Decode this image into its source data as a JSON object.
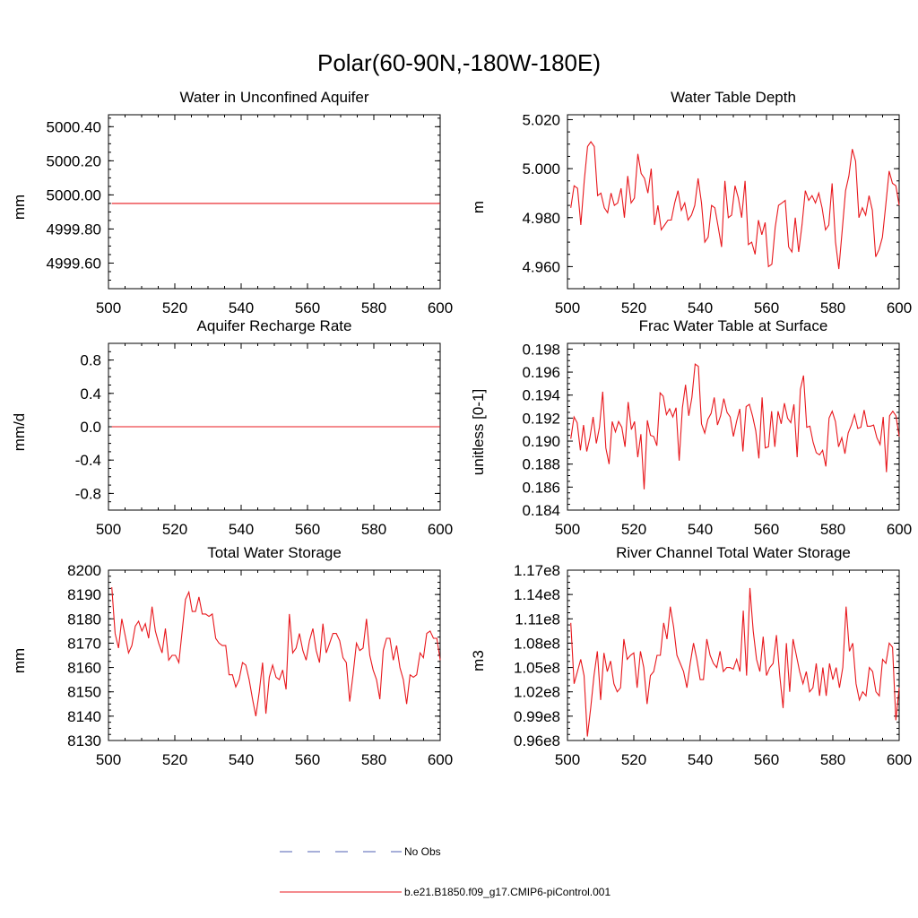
{
  "title": "Polar(60-90N,-180W-180E)",
  "legend": {
    "entries": [
      {
        "label": "No Obs",
        "color": "#4f5fb3",
        "dash": true
      },
      {
        "label": "b.e21.B1850.f09_g17.CMIP6-piControl.001",
        "color": "#e8171c",
        "dash": false
      }
    ]
  },
  "chart_data": [
    {
      "type": "line",
      "title": "Water in Unconfined Aquifer",
      "ylabel": "mm",
      "xlabel": "",
      "xlim": [
        500,
        600
      ],
      "ylim": [
        4999.45,
        5000.47
      ],
      "xticks": [
        500,
        520,
        540,
        560,
        580,
        600
      ],
      "yticks": [
        4999.6,
        4999.8,
        5000.0,
        5000.2,
        5000.4
      ],
      "ytick_labels": [
        "4999.60",
        "4999.80",
        "5000.00",
        "5000.20",
        "5000.40"
      ],
      "x_start": 501,
      "series": [
        {
          "name": "b.e21.B1850.f09_g17.CMIP6-piControl.001",
          "values": [
            4999.95,
            4999.95
          ]
        }
      ],
      "x": [
        501,
        600
      ]
    },
    {
      "type": "line",
      "title": "Water Table Depth",
      "ylabel": "m",
      "xlabel": "",
      "xlim": [
        500,
        600
      ],
      "ylim": [
        4.951,
        5.022
      ],
      "xticks": [
        500,
        520,
        540,
        560,
        580,
        600
      ],
      "yticks": [
        4.96,
        4.98,
        5.0,
        5.02
      ],
      "ytick_labels": [
        "4.960",
        "4.980",
        "5.000",
        "5.020"
      ],
      "x_start": 501,
      "series": [
        {
          "name": "b.e21.B1850.f09_g17.CMIP6-piControl.001",
          "values": [
            4.984,
            4.993,
            4.992,
            4.977,
            4.995,
            5.009,
            5.011,
            5.009,
            4.989,
            4.99,
            4.984,
            4.982,
            4.99,
            4.985,
            4.986,
            4.992,
            4.98,
            4.997,
            4.986,
            4.988,
            5.006,
            4.998,
            4.996,
            4.99,
            5.0,
            4.977,
            4.985,
            4.975,
            4.977,
            4.979,
            4.979,
            4.986,
            4.991,
            4.983,
            4.986,
            4.979,
            4.981,
            4.985,
            4.996,
            4.986,
            4.97,
            4.972,
            4.985,
            4.984,
            4.976,
            4.968,
            4.995,
            4.98,
            4.981,
            4.993,
            4.988,
            4.98,
            4.995,
            4.969,
            4.97,
            4.965,
            4.979,
            4.973,
            4.978,
            4.96,
            4.961,
            4.976,
            4.985,
            4.986,
            4.987,
            4.968,
            4.966,
            4.98,
            4.966,
            4.977,
            4.991,
            4.987,
            4.989,
            4.986,
            4.99,
            4.984,
            4.975,
            4.977,
            4.994,
            4.97,
            4.959,
            4.975,
            4.991,
            4.997,
            5.008,
            5.003,
            4.98,
            4.984,
            4.981,
            4.989,
            4.983,
            4.964,
            4.967,
            4.972,
            4.985,
            4.999,
            4.994,
            4.993,
            4.985
          ]
        }
      ]
    },
    {
      "type": "line",
      "title": "Aquifer Recharge Rate",
      "ylabel": "mm/d",
      "xlabel": "",
      "xlim": [
        500,
        600
      ],
      "ylim": [
        -1.0,
        1.0
      ],
      "xticks": [
        500,
        520,
        540,
        560,
        580,
        600
      ],
      "yticks": [
        -0.8,
        -0.4,
        0.0,
        0.4,
        0.8
      ],
      "ytick_labels": [
        "-0.8",
        "-0.4",
        "0.0",
        "0.4",
        "0.8"
      ],
      "x": [
        501,
        600
      ],
      "series": [
        {
          "name": "b.e21.B1850.f09_g17.CMIP6-piControl.001",
          "values": [
            0.0,
            0.0
          ]
        }
      ]
    },
    {
      "type": "line",
      "title": "Frac Water Table at Surface",
      "ylabel": "unitless [0-1]",
      "xlabel": "",
      "xlim": [
        500,
        600
      ],
      "ylim": [
        0.184,
        0.1985
      ],
      "xticks": [
        500,
        520,
        540,
        560,
        580,
        600
      ],
      "yticks": [
        0.184,
        0.186,
        0.188,
        0.19,
        0.192,
        0.194,
        0.196,
        0.198
      ],
      "ytick_labels": [
        "0.184",
        "0.186",
        "0.188",
        "0.190",
        "0.192",
        "0.194",
        "0.196",
        "0.198"
      ],
      "x_start": 501,
      "series": [
        {
          "name": "b.e21.B1850.f09_g17.CMIP6-piControl.001",
          "values": [
            0.1902,
            0.1921,
            0.1916,
            0.1892,
            0.1914,
            0.1891,
            0.1903,
            0.1921,
            0.1898,
            0.1912,
            0.1943,
            0.1894,
            0.188,
            0.1917,
            0.1908,
            0.1917,
            0.1912,
            0.1895,
            0.1934,
            0.191,
            0.1917,
            0.1886,
            0.1906,
            0.1858,
            0.1918,
            0.1905,
            0.1904,
            0.1896,
            0.1942,
            0.1939,
            0.1923,
            0.1928,
            0.1921,
            0.1929,
            0.1883,
            0.1929,
            0.1949,
            0.1922,
            0.1938,
            0.1967,
            0.1965,
            0.1915,
            0.1907,
            0.1919,
            0.1924,
            0.1938,
            0.1914,
            0.1922,
            0.1937,
            0.1925,
            0.1921,
            0.1904,
            0.1917,
            0.1928,
            0.1891,
            0.193,
            0.1932,
            0.1922,
            0.1909,
            0.1885,
            0.1938,
            0.1894,
            0.1895,
            0.1926,
            0.1895,
            0.1926,
            0.1915,
            0.1933,
            0.192,
            0.1916,
            0.1932,
            0.1886,
            0.1945,
            0.1957,
            0.1912,
            0.1913,
            0.1899,
            0.189,
            0.1888,
            0.1892,
            0.1878,
            0.192,
            0.1926,
            0.1917,
            0.1895,
            0.1903,
            0.1889,
            0.1907,
            0.1914,
            0.1923,
            0.1911,
            0.1912,
            0.1927,
            0.1913,
            0.1913,
            0.1914,
            0.1903,
            0.1897,
            0.1921,
            0.1873,
            0.1922,
            0.1926,
            0.1922,
            0.1904
          ]
        }
      ],
      "note": "series sampled at roughly 1-unit spacing"
    },
    {
      "type": "line",
      "title": "Total Water Storage",
      "ylabel": "mm",
      "xlabel": "",
      "xlim": [
        500,
        600
      ],
      "ylim": [
        8130,
        8200
      ],
      "xticks": [
        500,
        520,
        540,
        560,
        580,
        600
      ],
      "yticks": [
        8130,
        8140,
        8150,
        8160,
        8170,
        8180,
        8190,
        8200
      ],
      "ytick_labels": [
        "8130",
        "8140",
        "8150",
        "8160",
        "8170",
        "8180",
        "8190",
        "8200"
      ],
      "x_start": 501,
      "series": [
        {
          "name": "b.e21.B1850.f09_g17.CMIP6-piControl.001",
          "values": [
            8193,
            8174,
            8168,
            8180,
            8173,
            8166,
            8169,
            8177,
            8179,
            8175,
            8178,
            8172,
            8185,
            8175,
            8170,
            8166,
            8176,
            8163,
            8165,
            8165,
            8162,
            8175,
            8188,
            8191,
            8183,
            8183,
            8189,
            8182,
            8182,
            8181,
            8182,
            8172,
            8170,
            8169,
            8169,
            8157,
            8157,
            8152,
            8155,
            8162,
            8161,
            8155,
            8147,
            8140,
            8150,
            8162,
            8141,
            8156,
            8161,
            8156,
            8155,
            8159,
            8151,
            8182,
            8166,
            8168,
            8174,
            8167,
            8163,
            8171,
            8176,
            8167,
            8162,
            8178,
            8166,
            8170,
            8174,
            8174,
            8171,
            8164,
            8162,
            8146,
            8157,
            8170,
            8167,
            8168,
            8180,
            8165,
            8159,
            8155,
            8147,
            8167,
            8172,
            8172,
            8163,
            8169,
            8160,
            8155,
            8145,
            8157,
            8156,
            8157,
            8166,
            8164,
            8174,
            8175,
            8172,
            8172,
            8163
          ]
        }
      ]
    },
    {
      "type": "line",
      "title": "River Channel Total Water Storage",
      "ylabel": "m3",
      "xlabel": "",
      "xlim": [
        500,
        600
      ],
      "ylim": [
        96000000.0,
        117000000.0
      ],
      "xticks": [
        500,
        520,
        540,
        560,
        580,
        600
      ],
      "yticks": [
        96000000.0,
        99000000.0,
        102000000.0,
        105000000.0,
        108000000.0,
        111000000.0,
        114000000.0,
        117000000.0
      ],
      "ytick_labels": [
        "0.96e8",
        "0.99e8",
        "1.02e8",
        "1.05e8",
        "1.08e8",
        "1.11e8",
        "1.14e8",
        "1.17e8"
      ],
      "x_start": 501,
      "series": [
        {
          "name": "b.e21.B1850.f09_g17.CMIP6-piControl.001",
          "values": [
            110500000.0,
            103000000.0,
            104500000.0,
            106000000.0,
            104000000.0,
            96500000.0,
            100000000.0,
            104000000.0,
            107000000.0,
            101000000.0,
            106800000.0,
            104500000.0,
            105800000.0,
            103000000.0,
            102000000.0,
            102500000.0,
            108500000.0,
            106000000.0,
            106500000.0,
            106800000.0,
            102500000.0,
            107000000.0,
            105000000.0,
            100500000.0,
            104000000.0,
            104500000.0,
            106500000.0,
            106500000.0,
            110500000.0,
            108500000.0,
            112500000.0,
            110000000.0,
            106500000.0,
            105500000.0,
            104500000.0,
            102500000.0,
            105500000.0,
            108000000.0,
            106000000.0,
            103500000.0,
            103500000.0,
            108500000.0,
            106500000.0,
            105500000.0,
            105000000.0,
            107000000.0,
            104500000.0,
            105000000.0,
            105000000.0,
            104800000.0,
            106000000.0,
            104500000.0,
            112000000.0,
            104000000.0,
            114800000.0,
            109500000.0,
            106000000.0,
            104500000.0,
            108800000.0,
            104000000.0,
            105000000.0,
            105500000.0,
            109000000.0,
            104000000.0,
            100000000.0,
            108000000.0,
            102000000.0,
            108500000.0,
            106500000.0,
            104500000.0,
            103000000.0,
            104500000.0,
            102000000.0,
            102500000.0,
            105500000.0,
            101500000.0,
            105000000.0,
            101500000.0,
            105500000.0,
            103500000.0,
            105000000.0,
            102500000.0,
            105000000.0,
            112500000.0,
            107000000.0,
            108000000.0,
            103000000.0,
            101000000.0,
            102000000.0,
            101500000.0,
            105000000.0,
            104500000.0,
            102000000.0,
            101500000.0,
            106000000.0,
            105500000.0,
            108000000.0,
            107500000.0,
            98500000.0,
            102500000.0
          ]
        }
      ],
      "note": "last point returns toward 1.02e8 at x=600"
    }
  ]
}
